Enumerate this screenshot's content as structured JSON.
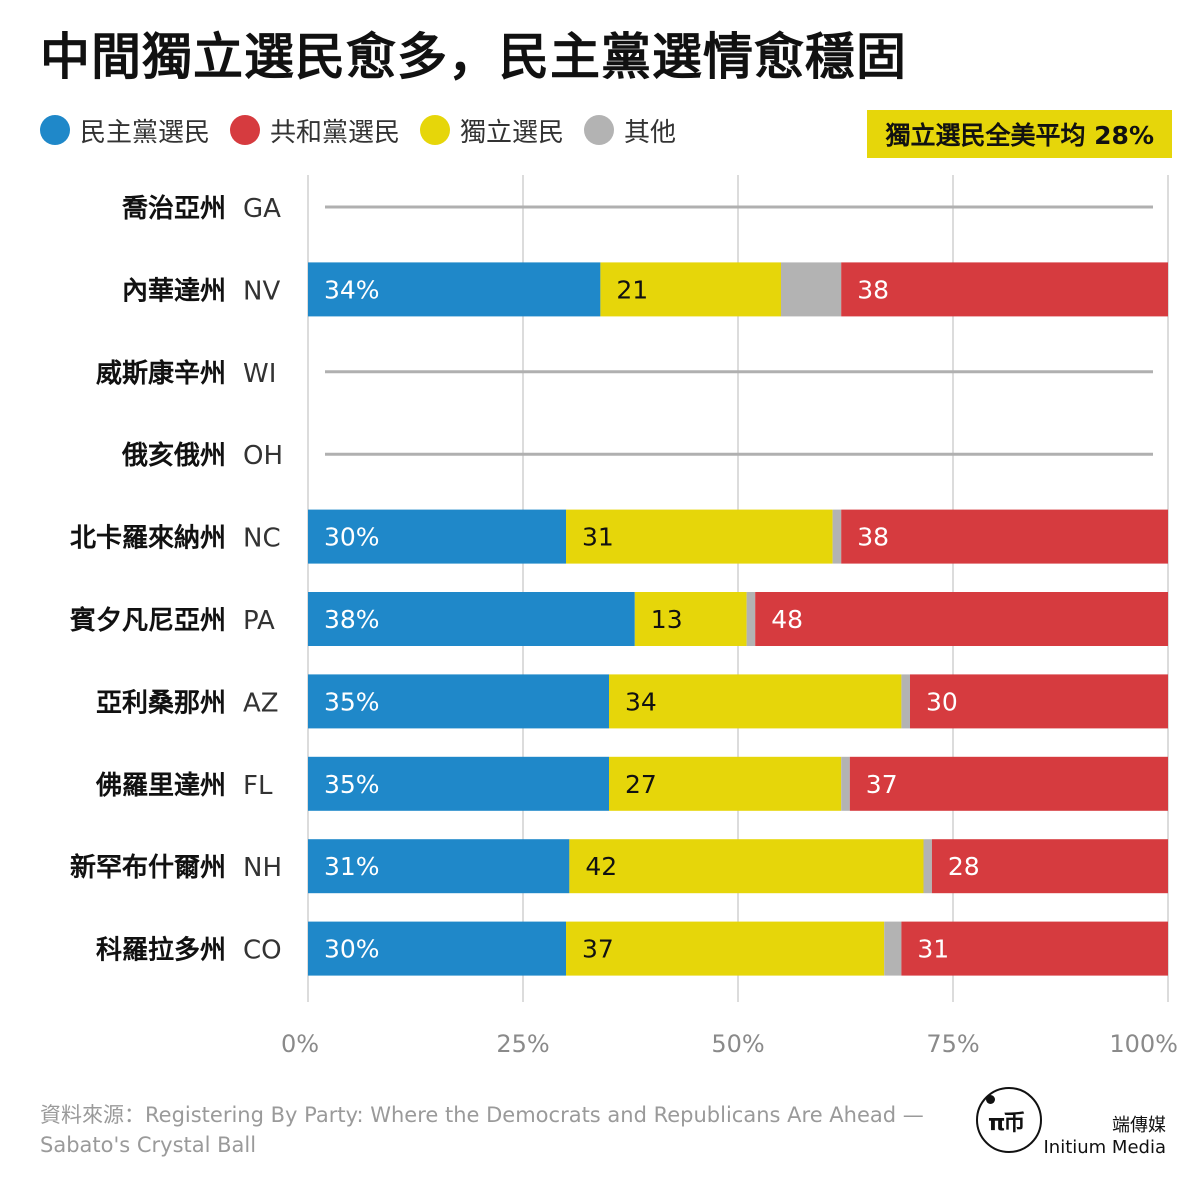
{
  "title": "中間獨立選民愈多，民主黨選情愈穩固",
  "legend": [
    {
      "label": "民主黨選民",
      "color": "#1f88c9"
    },
    {
      "label": "共和黨選民",
      "color": "#d63b3f"
    },
    {
      "label": "獨立選民",
      "color": "#e6d60a"
    },
    {
      "label": "其他",
      "color": "#b3b3b3"
    }
  ],
  "badge": "獨立選民全美平均 28%",
  "source": {
    "line1": "資料來源：Registering By Party: Where the Democrats and Republicans Are Ahead —",
    "line2": "Sabato's Crystal Ball"
  },
  "logo": {
    "glyph": "π币",
    "cn": "端傳媒",
    "en": "Initium Media"
  },
  "chart_data": {
    "type": "bar",
    "orientation": "horizontal",
    "stacked": true,
    "xlim": [
      0,
      100
    ],
    "x_ticks": [
      "0%",
      "25%",
      "50%",
      "75%",
      "100%"
    ],
    "grid": true,
    "categories": [
      {
        "name": "喬治亞州",
        "code": "GA"
      },
      {
        "name": "內華達州",
        "code": "NV"
      },
      {
        "name": "威斯康辛州",
        "code": "WI"
      },
      {
        "name": "俄亥俄州",
        "code": "OH"
      },
      {
        "name": "北卡羅來納州",
        "code": "NC"
      },
      {
        "name": "賓夕凡尼亞州",
        "code": "PA"
      },
      {
        "name": "亞利桑那州",
        "code": "AZ"
      },
      {
        "name": "佛羅里達州",
        "code": "FL"
      },
      {
        "name": "新罕布什爾州",
        "code": "NH"
      },
      {
        "name": "科羅拉多州",
        "code": "CO"
      }
    ],
    "series": [
      {
        "name": "民主黨選民",
        "color": "#1f88c9",
        "label_color": "#ffffff",
        "values": [
          null,
          34,
          null,
          null,
          30,
          38,
          35,
          35,
          31,
          30
        ],
        "labels": [
          null,
          "34%",
          null,
          null,
          "30%",
          "38%",
          "35%",
          "35%",
          "31%",
          "30%"
        ]
      },
      {
        "name": "獨立選民",
        "color": "#e6d60a",
        "label_color": "#111111",
        "values": [
          null,
          21,
          null,
          null,
          31,
          13,
          34,
          27,
          42,
          37
        ],
        "labels": [
          null,
          "21",
          null,
          null,
          "31",
          "13",
          "34",
          "27",
          "42",
          "37"
        ]
      },
      {
        "name": "其他",
        "color": "#b3b3b3",
        "label_color": "#111111",
        "values": [
          null,
          7,
          null,
          null,
          1,
          1,
          1,
          1,
          1,
          2
        ],
        "labels": [
          null,
          null,
          null,
          null,
          null,
          null,
          null,
          null,
          null,
          null
        ]
      },
      {
        "name": "共和黨選民",
        "color": "#d63b3f",
        "label_color": "#ffffff",
        "values": [
          null,
          38,
          null,
          null,
          38,
          48,
          30,
          37,
          28,
          31
        ],
        "labels": [
          null,
          "38",
          null,
          null,
          "38",
          "48",
          "30",
          "37",
          "28",
          "31"
        ]
      }
    ]
  }
}
